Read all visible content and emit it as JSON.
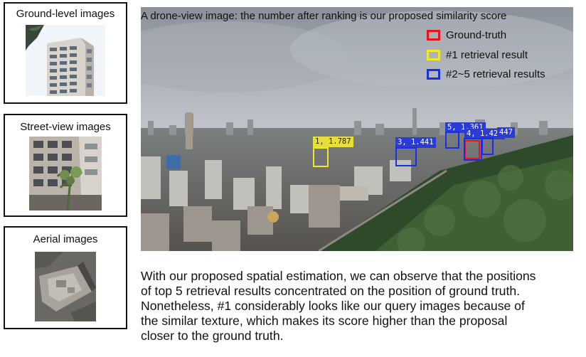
{
  "panels": {
    "ground": {
      "title": "Ground-level images",
      "image_icon": "building-photo"
    },
    "street": {
      "title": "Street-view images",
      "image_icon": "street-building-photo"
    },
    "aerial": {
      "title": "Aerial images",
      "image_icon": "aerial-rooftop-photo"
    }
  },
  "drone": {
    "caption": "A drone-view image: the number after ranking is our proposed similarity score",
    "legend": [
      {
        "label": "Ground-truth",
        "color": "#e8141a"
      },
      {
        "label": "#1 retrieval result",
        "color": "#f2e82a"
      },
      {
        "label": "#2~5 retrieval results",
        "color": "#1a2fe0"
      }
    ],
    "boxes": [
      {
        "label": "1, 1.787",
        "rank": 1,
        "score": 1.787,
        "kind": "top1"
      },
      {
        "label": "3, 1.441",
        "rank": 3,
        "score": 1.441,
        "kind": "topk"
      },
      {
        "label": "5, 1.361",
        "rank": 5,
        "score": 1.361,
        "kind": "topk"
      },
      {
        "label": "4, 1.420",
        "rank": 4,
        "score": 1.42,
        "kind": "topk"
      },
      {
        "label": "447",
        "rank": 2,
        "score": 1.447,
        "kind": "topk"
      }
    ]
  },
  "description": {
    "lines": [
      "With our proposed spatial estimation, we can observe that the positions",
      "of top 5 retrieval results concentrated on the position of ground truth.",
      "Nonetheless, #1 considerably looks like our query images because of",
      "the similar texture, which makes its score higher than the proposal",
      "closer to the ground truth."
    ]
  }
}
